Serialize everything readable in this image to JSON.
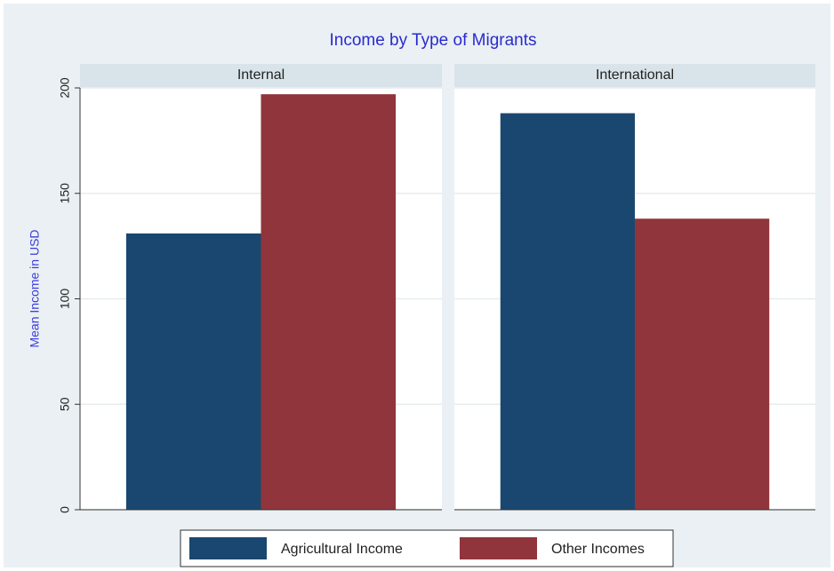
{
  "chart_data": {
    "type": "bar",
    "title": "Income by Type of Migrants",
    "ylabel": "Mean Income in USD",
    "categories": [
      "Internal",
      "International"
    ],
    "series": [
      {
        "name": "Agricultural Income",
        "color": "#1a476f",
        "values": [
          131,
          188
        ]
      },
      {
        "name": "Other Incomes",
        "color": "#90353b",
        "values": [
          197,
          138
        ]
      }
    ],
    "ylim": [
      0,
      200
    ],
    "yticks": [
      0,
      50,
      100,
      150,
      200
    ],
    "grid": true,
    "legend": "bottom"
  }
}
